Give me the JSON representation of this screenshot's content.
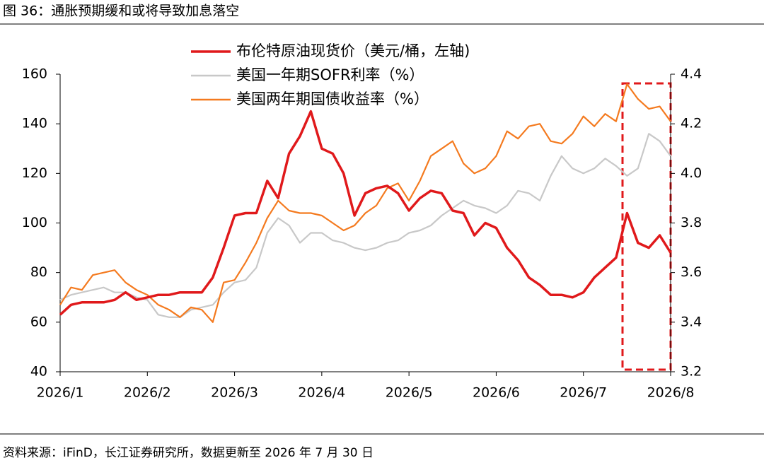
{
  "chart_data": {
    "type": "line",
    "title": "图 36：通胀预期缓和或将导致加息落空",
    "source": "资料来源：iFinD，长江证券研究所，数据更新至 2026 年 7 月 30 日",
    "categories": [
      "2026/1",
      null,
      null,
      null,
      null,
      null,
      null,
      null,
      "2026/2",
      null,
      null,
      null,
      null,
      null,
      null,
      null,
      "2026/3",
      null,
      null,
      null,
      null,
      null,
      null,
      null,
      "2026/4",
      null,
      null,
      null,
      null,
      null,
      null,
      null,
      "2026/5",
      null,
      null,
      null,
      null,
      null,
      null,
      null,
      "2026/6",
      null,
      null,
      null,
      null,
      null,
      null,
      null,
      "2026/7",
      null,
      null,
      null,
      null,
      null,
      null,
      null,
      "2026/8"
    ],
    "series": [
      {
        "name": "布伦特原油现货价（美元/桶，左轴)",
        "color": "#e0191b",
        "axis": "y",
        "values": [
          63,
          67,
          68,
          68,
          68,
          69,
          72,
          69,
          70,
          71,
          71,
          72,
          72,
          72,
          78,
          90,
          103,
          104,
          104,
          117,
          110,
          128,
          135,
          145,
          130,
          128,
          120,
          103,
          112,
          114,
          115,
          112,
          105,
          110,
          113,
          112,
          105,
          104,
          95,
          100,
          98,
          90,
          85,
          78,
          75,
          71,
          71,
          70,
          72,
          78,
          82,
          86,
          104,
          92,
          90,
          95,
          88
        ]
      },
      {
        "name": "美国一年期SOFR利率（%）",
        "color": "#c8c8c8",
        "axis": "y2",
        "values": [
          3.49,
          3.51,
          3.52,
          3.53,
          3.54,
          3.52,
          3.52,
          3.5,
          3.49,
          3.43,
          3.42,
          3.42,
          3.45,
          3.46,
          3.47,
          3.52,
          3.56,
          3.57,
          3.62,
          3.76,
          3.82,
          3.79,
          3.72,
          3.76,
          3.76,
          3.73,
          3.72,
          3.7,
          3.69,
          3.7,
          3.72,
          3.73,
          3.76,
          3.77,
          3.79,
          3.83,
          3.86,
          3.89,
          3.87,
          3.86,
          3.84,
          3.87,
          3.93,
          3.92,
          3.89,
          3.99,
          4.07,
          4.02,
          4.0,
          4.02,
          4.06,
          4.03,
          3.99,
          4.02,
          4.16,
          4.13,
          4.07
        ]
      },
      {
        "name": "美国两年期国债收益率（%）",
        "color": "#f47a1f",
        "axis": "y2",
        "values": [
          3.47,
          3.54,
          3.53,
          3.59,
          3.6,
          3.61,
          3.56,
          3.53,
          3.51,
          3.47,
          3.45,
          3.42,
          3.46,
          3.45,
          3.4,
          3.56,
          3.57,
          3.64,
          3.72,
          3.82,
          3.89,
          3.85,
          3.84,
          3.84,
          3.83,
          3.8,
          3.77,
          3.79,
          3.84,
          3.87,
          3.94,
          3.96,
          3.89,
          3.97,
          4.07,
          4.1,
          4.13,
          4.04,
          4.0,
          4.02,
          4.07,
          4.17,
          4.14,
          4.19,
          4.2,
          4.13,
          4.12,
          4.16,
          4.23,
          4.19,
          4.24,
          4.21,
          4.36,
          4.3,
          4.26,
          4.27,
          4.21
        ]
      }
    ],
    "ylim": [
      40,
      160
    ],
    "yticks": [
      40,
      60,
      80,
      100,
      120,
      140,
      160
    ],
    "y2lim": [
      3.2,
      4.4
    ],
    "y2ticks": [
      3.2,
      3.4,
      3.6,
      3.8,
      {
        "value": 4,
        "label": "4.0"
      },
      4.2,
      4.4
    ],
    "grid": false
  }
}
